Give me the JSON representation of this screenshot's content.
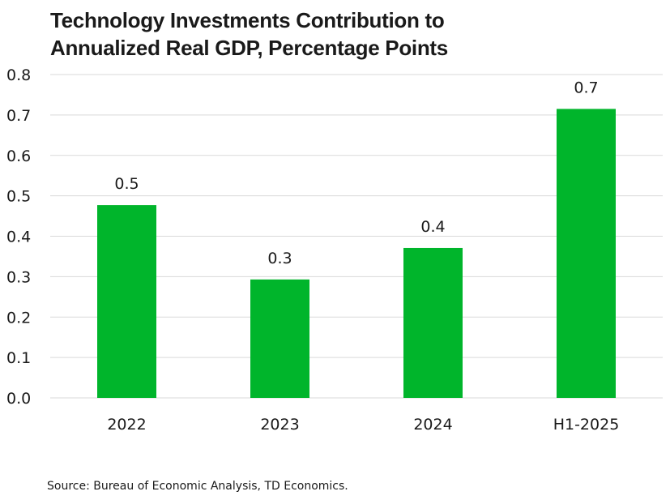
{
  "chart_data": {
    "type": "bar",
    "title_lines": [
      "Technology Investments Contribution to",
      "Annualized Real GDP, Percentage Points"
    ],
    "categories": [
      "2022",
      "2023",
      "2024",
      "H1-2025"
    ],
    "values": [
      0.477,
      0.293,
      0.371,
      0.715
    ],
    "data_labels": [
      "0.5",
      "0.3",
      "0.4",
      "0.7"
    ],
    "ylim": [
      0,
      0.8
    ],
    "yticks": [
      "0.0",
      "0.1",
      "0.2",
      "0.3",
      "0.4",
      "0.5",
      "0.6",
      "0.7",
      "0.8"
    ],
    "xlabel": "",
    "ylabel": "",
    "grid": true,
    "bar_color": "#00b52b",
    "grid_color": "#d9d9d9",
    "source": "Source: Bureau of Economic Analysis, TD Economics."
  }
}
